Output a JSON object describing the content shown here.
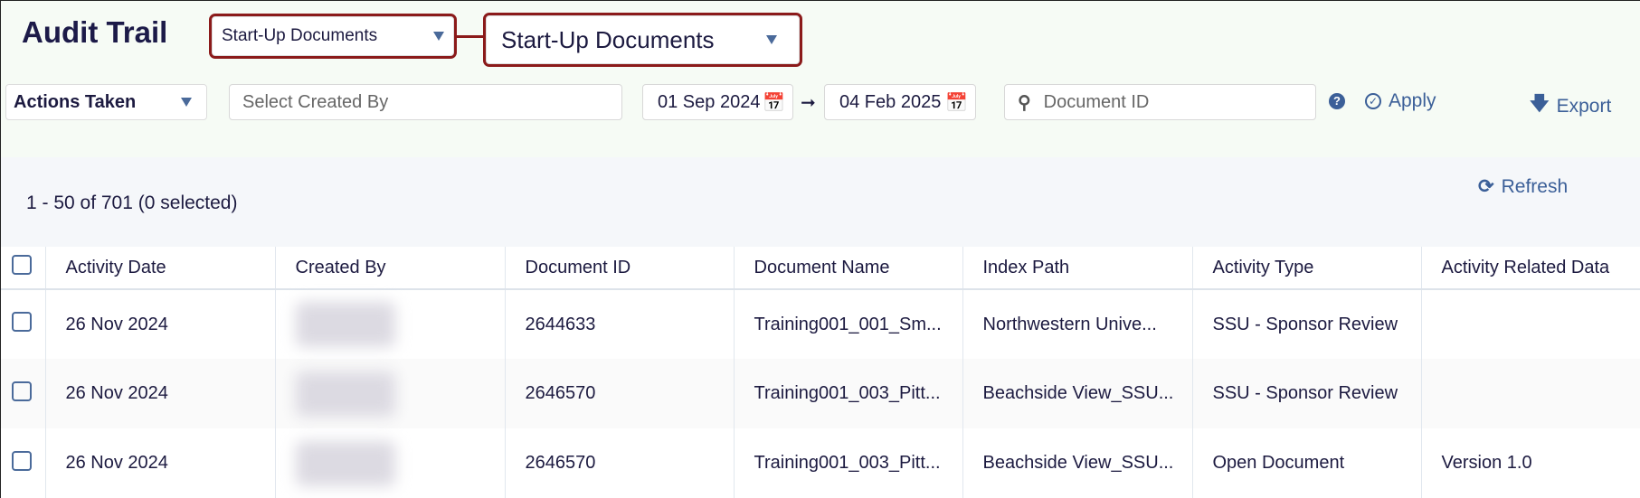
{
  "header": {
    "title": "Audit Trail",
    "module_dropdown": "Start-Up Documents",
    "module_dropdown_zoom": "Start-Up Documents"
  },
  "filters": {
    "actions": "Actions Taken",
    "created_by_placeholder": "Select Created By",
    "date_from": "01 Sep 2024",
    "date_to": "04 Feb 2025",
    "document_id_placeholder": "Document ID",
    "apply": "Apply",
    "export": "Export"
  },
  "summary": {
    "count": "1 - 50 of 701 (0 selected)",
    "refresh": "Refresh"
  },
  "colors": {
    "highlight": "#8b1a1a",
    "accent": "#3b5f98"
  },
  "table": {
    "columns": [
      "Activity Date",
      "Created By",
      "Document ID",
      "Document Name",
      "Index Path",
      "Activity Type",
      "Activity Related Data"
    ],
    "rows": [
      {
        "date": "26 Nov 2024",
        "doc_id": "2644633",
        "doc_name": "Training001_001_Sm...",
        "index_path": "Northwestern Unive...",
        "type": "SSU - Sponsor Review",
        "related": ""
      },
      {
        "date": "26 Nov 2024",
        "doc_id": "2646570",
        "doc_name": "Training001_003_Pitt...",
        "index_path": "Beachside View_SSU...",
        "type": "SSU - Sponsor Review",
        "related": ""
      },
      {
        "date": "26 Nov 2024",
        "doc_id": "2646570",
        "doc_name": "Training001_003_Pitt...",
        "index_path": "Beachside View_SSU...",
        "type": "Open Document",
        "related": "Version 1.0"
      }
    ]
  }
}
